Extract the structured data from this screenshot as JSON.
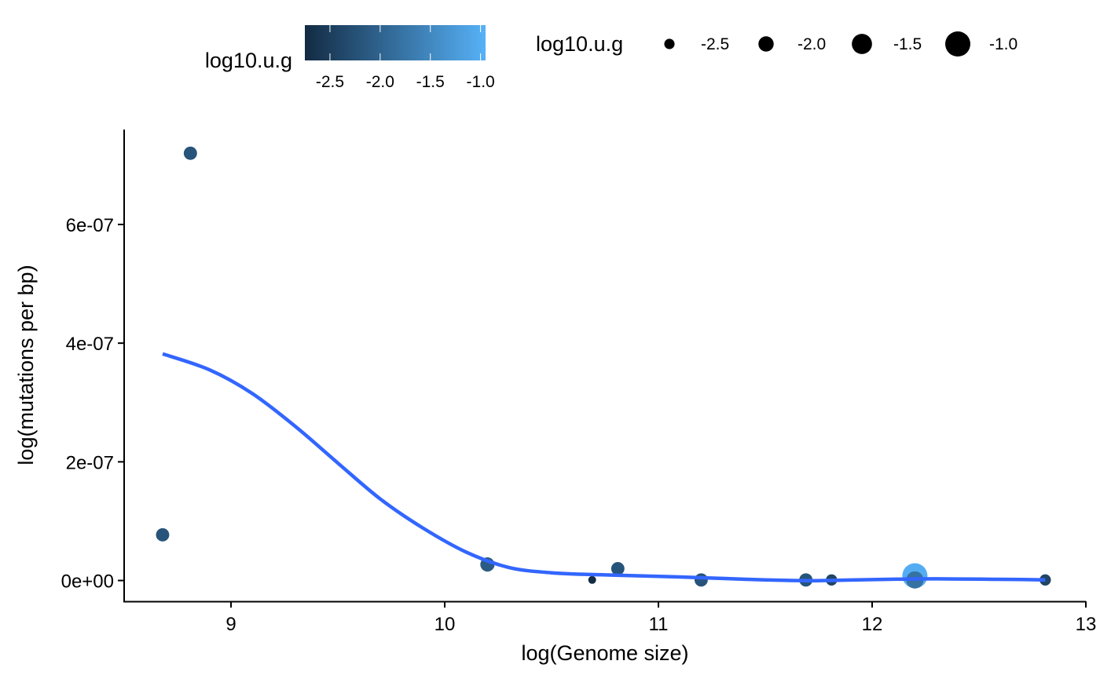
{
  "chart_data": {
    "type": "scatter",
    "xlabel": "log(Genome size)",
    "ylabel": "log(mutations per bp)",
    "xlim": [
      8.5,
      13
    ],
    "ylim": [
      -3.5e-08,
      7.6e-07
    ],
    "x_ticks": [
      9,
      10,
      11,
      12,
      13
    ],
    "x_tick_labels": [
      "9",
      "10",
      "11",
      "12",
      "13"
    ],
    "y_ticks": [
      0,
      2e-07,
      4e-07,
      6e-07
    ],
    "y_tick_labels": [
      "0e+00",
      "2e-07",
      "4e-07",
      "6e-07"
    ],
    "grid": false,
    "legend_position": "top",
    "color_legend": {
      "title": "log10.u.g",
      "colors": [
        "#132b43",
        "#56b1f7"
      ],
      "range": [
        -2.75,
        -0.95
      ],
      "ticks": [
        -2.5,
        -2.0,
        -1.5,
        -1.0
      ],
      "tick_labels": [
        "-2.5",
        "-2.0",
        "-1.5",
        "-1.0"
      ]
    },
    "size_legend": {
      "title": "log10.u.g",
      "values": [
        -2.5,
        -2.0,
        -1.5,
        -1.0
      ],
      "labels": [
        "-2.5",
        "-2.0",
        "-1.5",
        "-1.0"
      ]
    },
    "points": [
      {
        "x": 8.68,
        "y": 7.7e-08,
        "u": -2.2
      },
      {
        "x": 8.81,
        "y": 7.2e-07,
        "u": -2.2
      },
      {
        "x": 10.2,
        "y": 2.7e-08,
        "u": -2.1
      },
      {
        "x": 10.69,
        "y": 1e-09,
        "u": -2.75
      },
      {
        "x": 10.81,
        "y": 2e-08,
        "u": -2.2
      },
      {
        "x": 11.2,
        "y": 1e-09,
        "u": -2.2
      },
      {
        "x": 11.69,
        "y": 1e-09,
        "u": -2.2
      },
      {
        "x": 11.81,
        "y": 1e-09,
        "u": -2.4
      },
      {
        "x": 12.2,
        "y": 8e-09,
        "u": -1.0
      },
      {
        "x": 12.2,
        "y": 1e-09,
        "u": -1.8
      },
      {
        "x": 12.81,
        "y": 1e-09,
        "u": -2.4
      }
    ],
    "smooth_line": {
      "color": "#3366ff",
      "x": [
        8.68,
        8.9,
        9.1,
        9.3,
        9.5,
        9.7,
        9.9,
        10.1,
        10.3,
        10.5,
        10.7,
        10.9,
        11.1,
        11.3,
        11.5,
        11.7,
        11.9,
        12.1,
        12.3,
        12.5,
        12.7,
        12.81
      ],
      "y": [
        3.82e-07,
        3.55e-07,
        3.15e-07,
        2.6e-07,
        1.98e-07,
        1.37e-07,
        8.8e-08,
        4.8e-08,
        2.2e-08,
        1.3e-08,
        1e-08,
        8e-09,
        6e-09,
        3.5e-09,
        1e-09,
        -2e-10,
        8e-10,
        2.2e-09,
        2.8e-09,
        2.3e-09,
        1.6e-09,
        1.1e-09
      ]
    }
  }
}
